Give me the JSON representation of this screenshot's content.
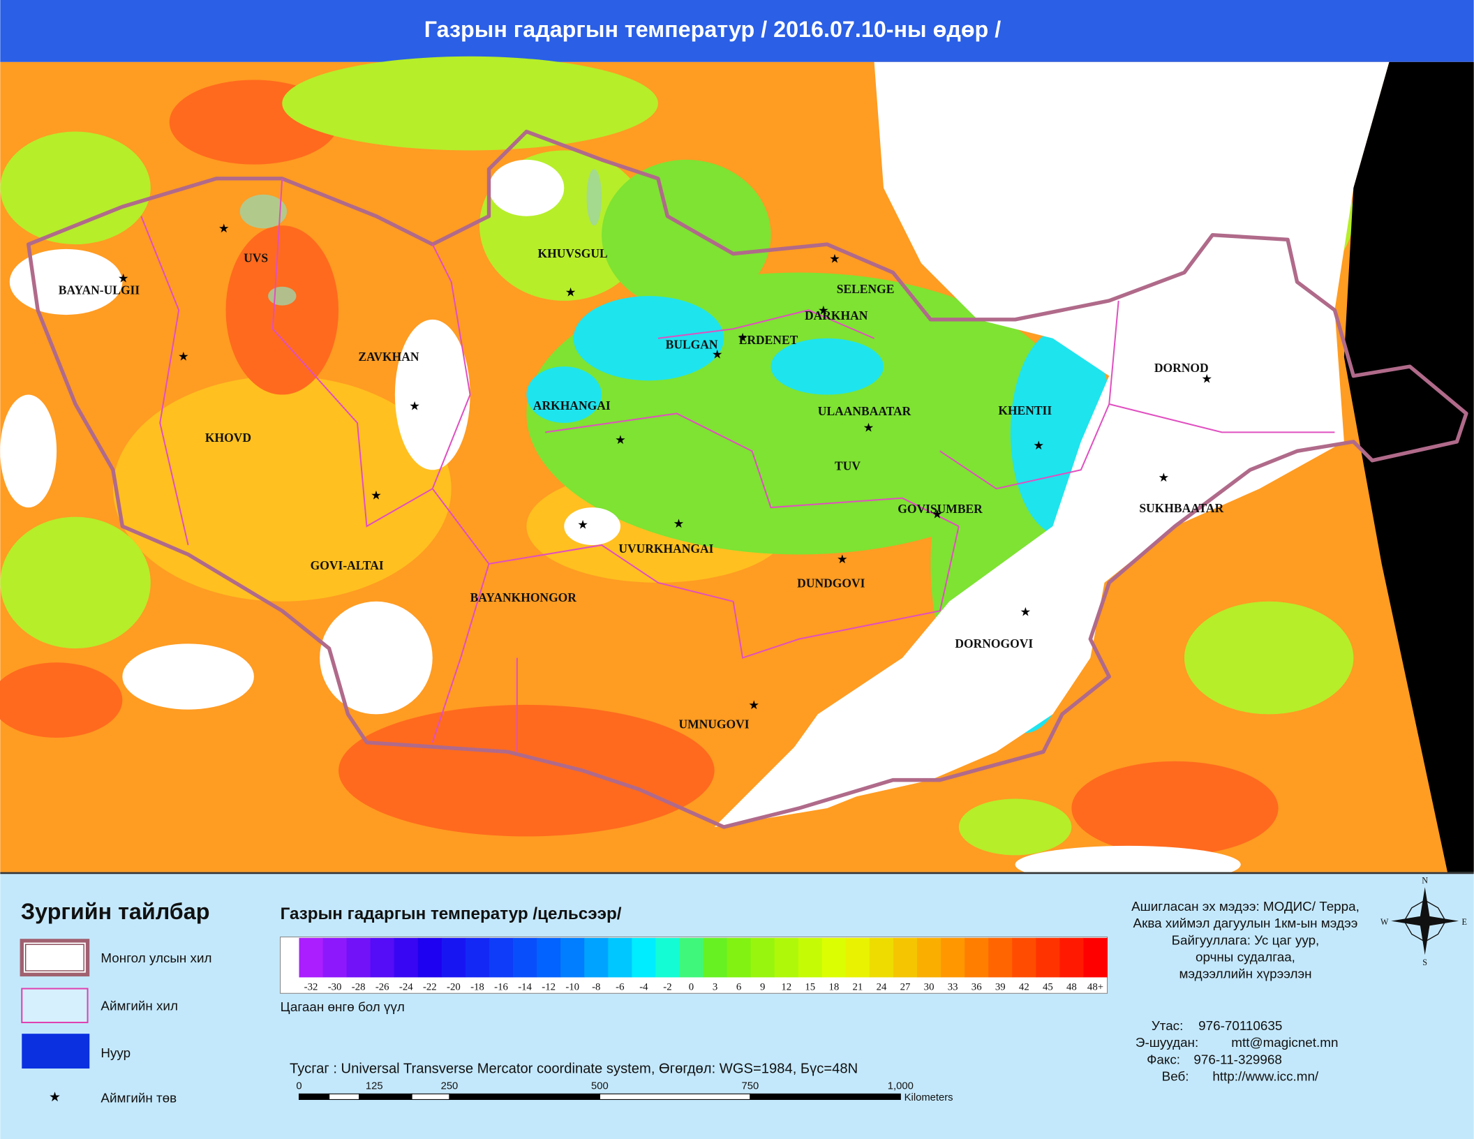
{
  "title": "Газрын гадаргын температур / 2016.07.10-ны өдөр /",
  "map": {
    "provinces": [
      "BAYAN-ULGII",
      "UVS",
      "KHUVSGUL",
      "SELENGE",
      "DARKHAN",
      "BULGAN",
      "ERDENET",
      "ZAVKHAN",
      "DORNOD",
      "ARKHANGAI",
      "ULAANBAATAR",
      "KHENTII",
      "KHOVD",
      "TUV",
      "SUKHBAATAR",
      "GOVISUMBER",
      "UVURKHANGAI",
      "GOVI-ALTAI",
      "DUNDGOVI",
      "BAYANKHONGOR",
      "DORNOGOVI",
      "UMNUGOVI"
    ]
  },
  "legend": {
    "title": "Зургийн тайлбар",
    "items": [
      "Монгол улсын хил",
      "Аймгийн хил",
      "Нуур",
      "Аймгийн төв"
    ]
  },
  "color_scale": {
    "title": "Газрын гадаргын температур /цельсээр/",
    "labels": [
      "-32",
      "-30",
      "-28",
      "-26",
      "-24",
      "-22",
      "-20",
      "-18",
      "-16",
      "-14",
      "-12",
      "-10",
      "-8",
      "-6",
      "-4",
      "-2",
      "0",
      "3",
      "6",
      "9",
      "12",
      "15",
      "18",
      "21",
      "24",
      "27",
      "30",
      "33",
      "36",
      "39",
      "42",
      "45",
      "48",
      "48+"
    ],
    "note": "Цагаан өнгө бол үүл"
  },
  "source": [
    "Ашигласан эх мэдээ: МОДИС/ Терра,",
    "Аква хиймэл дагуулын 1км-ын мэдээ",
    "Байгууллага: Ус цаг уур,",
    "орчны судалгаа,",
    "мэдээллийн хүрээлэн"
  ],
  "contacts": [
    [
      "Утас:",
      "976-70110635"
    ],
    [
      "Э-шуудан:",
      "mtt@magicnet.mn"
    ],
    [
      "Факс:",
      "976-11-329968"
    ],
    [
      "Веб:",
      "http://www.icc.mn/"
    ]
  ],
  "projection": "Тусгаг : Universal Transverse Mercator coordinate system, Өгөгдөл: WGS=1984, Бүс=48N",
  "scale_bar": {
    "labels": [
      "0",
      "125",
      "250",
      "500",
      "750",
      "1,000"
    ],
    "unit": "Kilometers"
  },
  "compass": [
    "N",
    "E",
    "S",
    "W"
  ]
}
